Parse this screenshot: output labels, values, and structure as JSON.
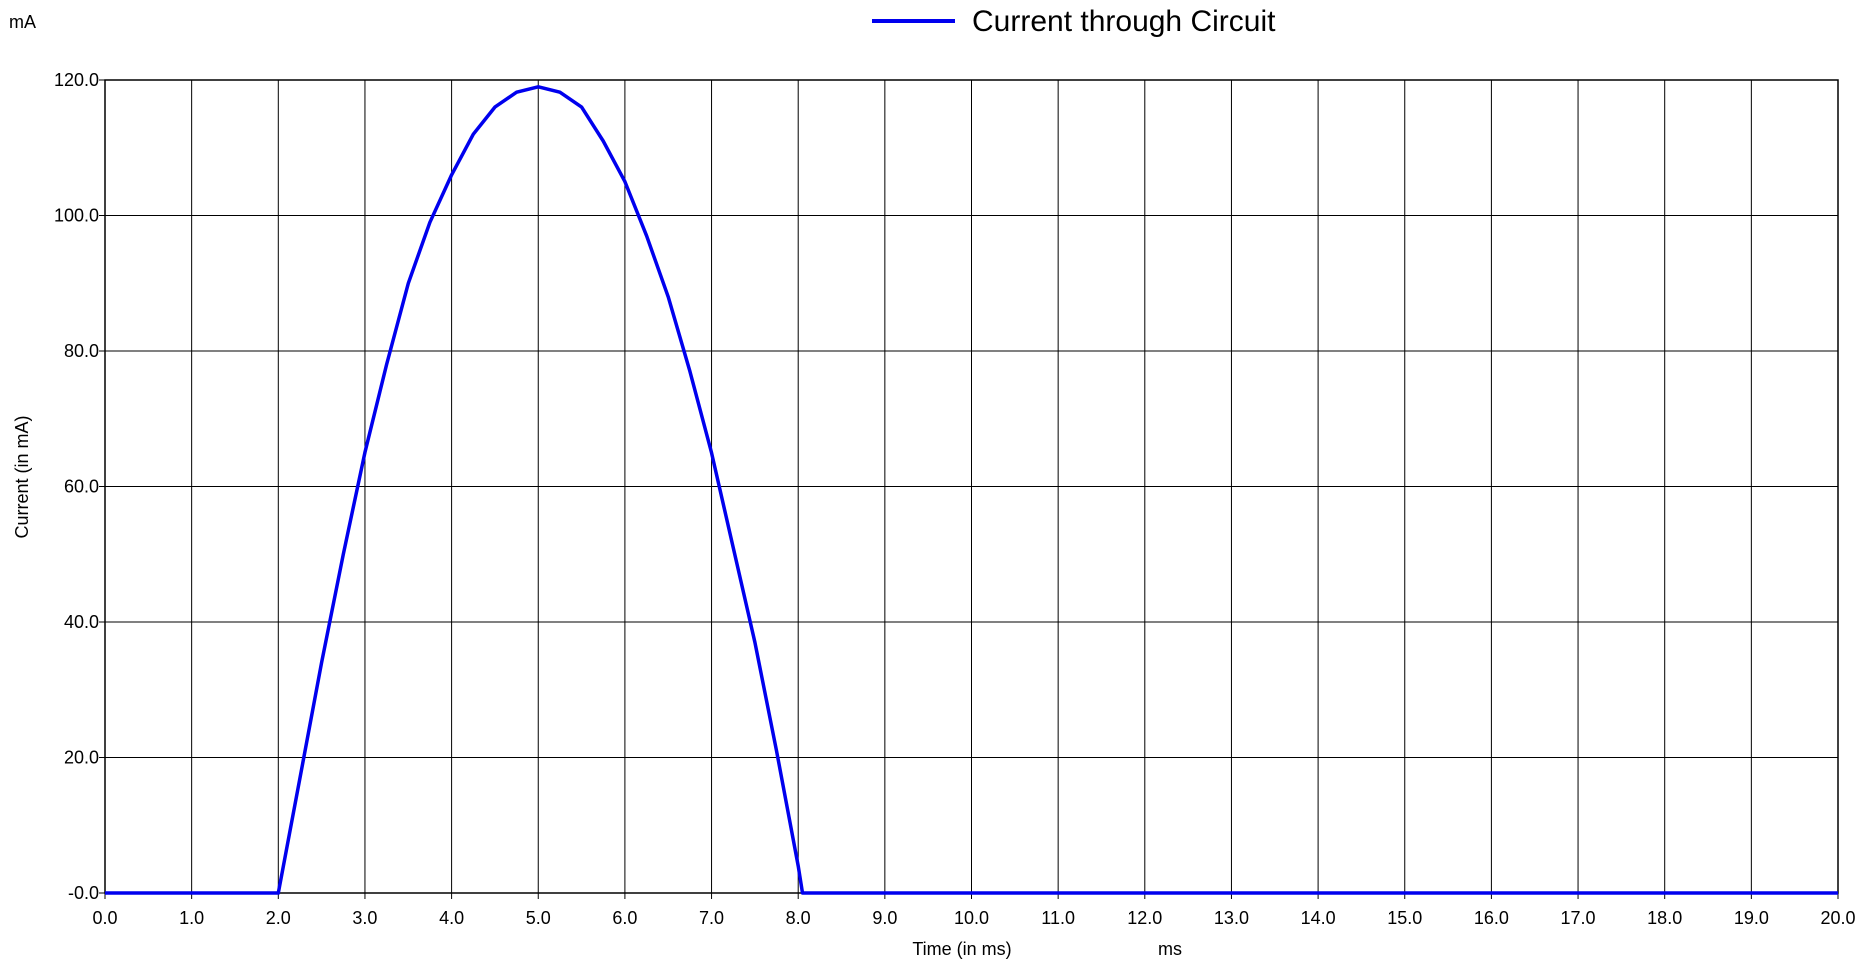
{
  "chart_data": {
    "type": "line",
    "legend": {
      "position": "top-center",
      "label": "Current through Circuit"
    },
    "ylabel": "Current (in mA)",
    "xlabel": "Time (in ms)",
    "y_unit": "mA",
    "x_unit": "ms",
    "xlim": [
      0,
      20
    ],
    "ylim": [
      0,
      120
    ],
    "grid": true,
    "x_ticks": [
      "0.0",
      "1.0",
      "2.0",
      "3.0",
      "4.0",
      "5.0",
      "6.0",
      "7.0",
      "8.0",
      "9.0",
      "10.0",
      "11.0",
      "12.0",
      "13.0",
      "14.0",
      "15.0",
      "16.0",
      "17.0",
      "18.0",
      "19.0",
      "20.0"
    ],
    "y_ticks": [
      {
        "value": 0,
        "label": "-0.0"
      },
      {
        "value": 20,
        "label": "20.0"
      },
      {
        "value": 40,
        "label": "40.0"
      },
      {
        "value": 60,
        "label": "60.0"
      },
      {
        "value": 80,
        "label": "80.0"
      },
      {
        "value": 100,
        "label": "100.0"
      },
      {
        "value": 120,
        "label": "120.0"
      }
    ],
    "series": [
      {
        "name": "Current through Circuit",
        "color": "#0000ee",
        "points": [
          [
            0,
            0
          ],
          [
            1.96,
            0
          ],
          [
            2.0,
            0
          ],
          [
            2.25,
            17
          ],
          [
            2.5,
            34
          ],
          [
            2.75,
            50
          ],
          [
            3.0,
            65
          ],
          [
            3.25,
            78
          ],
          [
            3.5,
            90
          ],
          [
            3.75,
            99
          ],
          [
            4.0,
            106
          ],
          [
            4.25,
            112
          ],
          [
            4.5,
            116
          ],
          [
            4.75,
            118.2
          ],
          [
            5.0,
            119
          ],
          [
            5.25,
            118.2
          ],
          [
            5.5,
            116
          ],
          [
            5.75,
            111
          ],
          [
            6.0,
            105
          ],
          [
            6.25,
            97
          ],
          [
            6.5,
            88
          ],
          [
            6.75,
            77
          ],
          [
            7.0,
            65
          ],
          [
            7.25,
            51
          ],
          [
            7.5,
            37
          ],
          [
            7.75,
            21
          ],
          [
            8.0,
            4
          ],
          [
            8.05,
            0
          ],
          [
            20.0,
            0
          ]
        ]
      }
    ]
  }
}
